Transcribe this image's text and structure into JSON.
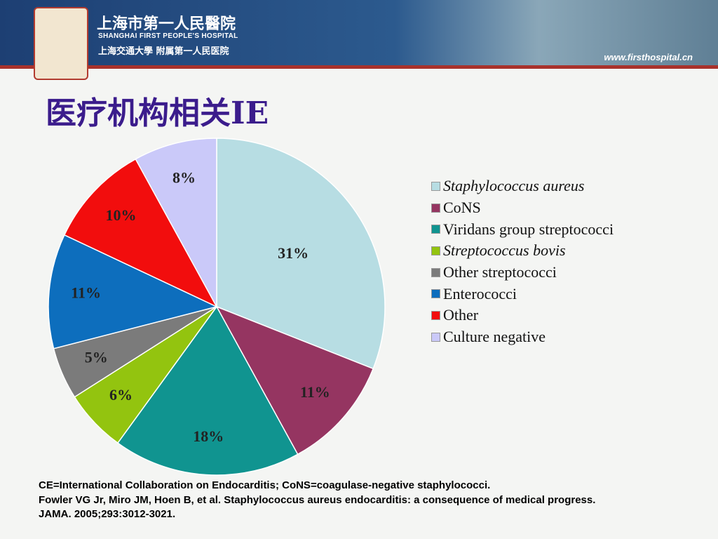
{
  "header": {
    "hospital_cn": "上海市第一人民醫院",
    "hospital_en": "SHANGHAI FIRST PEOPLE'S HOSPITAL",
    "affiliation": "上海交通大學 附属第一人民医院",
    "url": "www.firsthospital.cn"
  },
  "chart_data": {
    "type": "pie",
    "title": "医疗机构相关IE",
    "categories": [
      "Staphylococcus aureus",
      "CoNS",
      "Viridans group streptococci",
      "Streptococcus bovis",
      "Other streptococci",
      "Enterococci",
      "Other",
      "Culture negative"
    ],
    "values": [
      31,
      11,
      18,
      6,
      5,
      11,
      10,
      8
    ],
    "value_labels": [
      "31%",
      "11%",
      "18%",
      "6%",
      "5%",
      "11%",
      "10%",
      "8%"
    ],
    "colors": [
      "#b7dde3",
      "#953561",
      "#109490",
      "#93c40f",
      "#7b7b7b",
      "#0d6ebd",
      "#f20d0d",
      "#cac9f9"
    ],
    "legend": "right"
  },
  "footnote": [
    "CE=International Collaboration on Endocarditis; CoNS=coagulase-negative staphylococci.",
    "Fowler VG Jr, Miro JM, Hoen B, et al. Staphylococcus aureus endocarditis: a consequence of medical progress.",
    "JAMA. 2005;293:3012-3021."
  ]
}
